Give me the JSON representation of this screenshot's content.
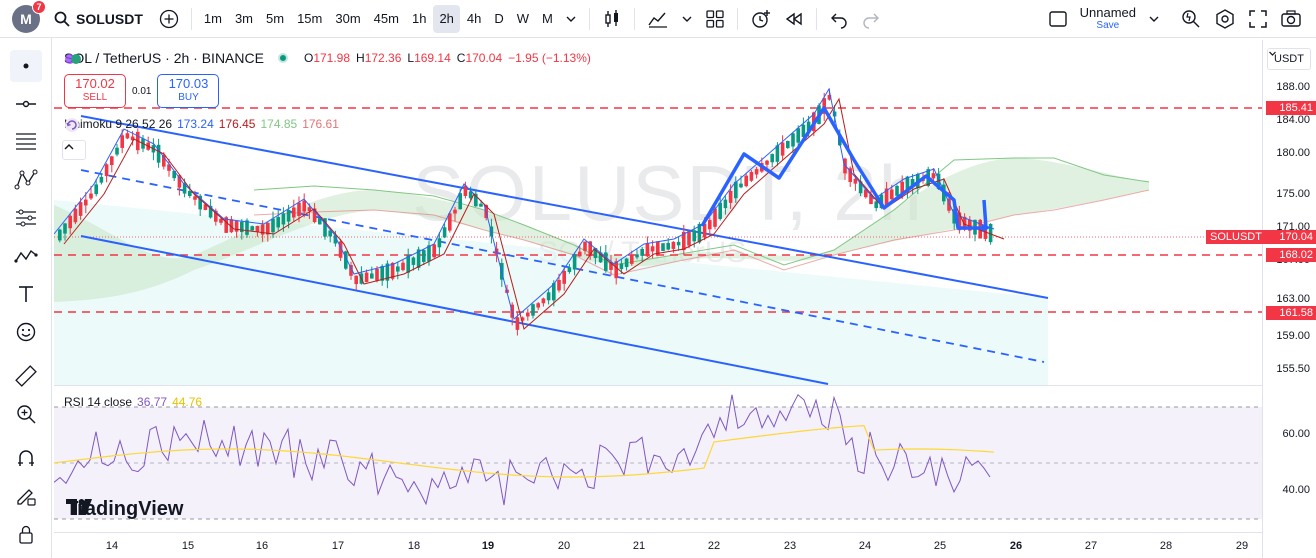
{
  "topbar": {
    "avatar_letter": "M",
    "notif_count": "7",
    "symbol": "SOLUSDT",
    "timeframes": [
      "1m",
      "3m",
      "5m",
      "15m",
      "30m",
      "45m",
      "1h",
      "2h",
      "4h",
      "D",
      "W",
      "M"
    ],
    "active_timeframe": "2h",
    "layout_name": "Unnamed",
    "layout_saved": "Save"
  },
  "legend": {
    "title": "SOL / TetherUS · 2h · BINANCE",
    "ohlc": [
      {
        "k": "O",
        "v": "171.98"
      },
      {
        "k": "H",
        "v": "172.36"
      },
      {
        "k": "L",
        "v": "169.14"
      },
      {
        "k": "C",
        "v": "170.04"
      },
      {
        "k": "",
        "v": "−1.95 (−1.13%)"
      }
    ]
  },
  "trade": {
    "sell_price": "170.02",
    "sell_label": "SELL",
    "spread": "0.01",
    "buy_price": "170.03",
    "buy_label": "BUY"
  },
  "ichimoku": {
    "label": "Ichimoku 9 26 52 26",
    "values": [
      "173.24",
      "176.45",
      "174.85",
      "176.61"
    ],
    "colors": [
      "#2962ff",
      "#b71c1c",
      "#81c784",
      "#e57373"
    ]
  },
  "rsi": {
    "label": "RSI 14 close",
    "value": "36.77",
    "ma": "44.76",
    "levels": [
      "60.00",
      "40.00"
    ]
  },
  "watermark": {
    "main": "SOLUSDT, 2h",
    "sub": "SOL / TetherUS"
  },
  "price_axis": {
    "currency": "USDT",
    "labels": [
      "188.00",
      "184.00",
      "180.00",
      "175.00",
      "171.00",
      "167.00",
      "163.00",
      "159.00",
      "155.50"
    ],
    "tags": [
      {
        "text": "185.41",
        "color": "#f23645"
      },
      {
        "text": "170.04",
        "color": "#f23645"
      },
      {
        "text": "168.02",
        "color": "#f23645"
      },
      {
        "text": "161.58",
        "color": "#f23645"
      }
    ],
    "symbol_tag": "SOLUSDT"
  },
  "rsi_axis": [
    "60.00",
    "40.00"
  ],
  "time_axis": [
    "14",
    "15",
    "16",
    "17",
    "18",
    "19",
    "20",
    "21",
    "22",
    "23",
    "24",
    "25",
    "26",
    "27",
    "28",
    "29"
  ],
  "branding": "TradingView",
  "colors": {
    "up": "#089981",
    "down": "#f23645",
    "drawing": "#2962ff",
    "level": "#f23645",
    "rsi": "#7e57c2",
    "rsi_ma": "#fdd835"
  }
}
